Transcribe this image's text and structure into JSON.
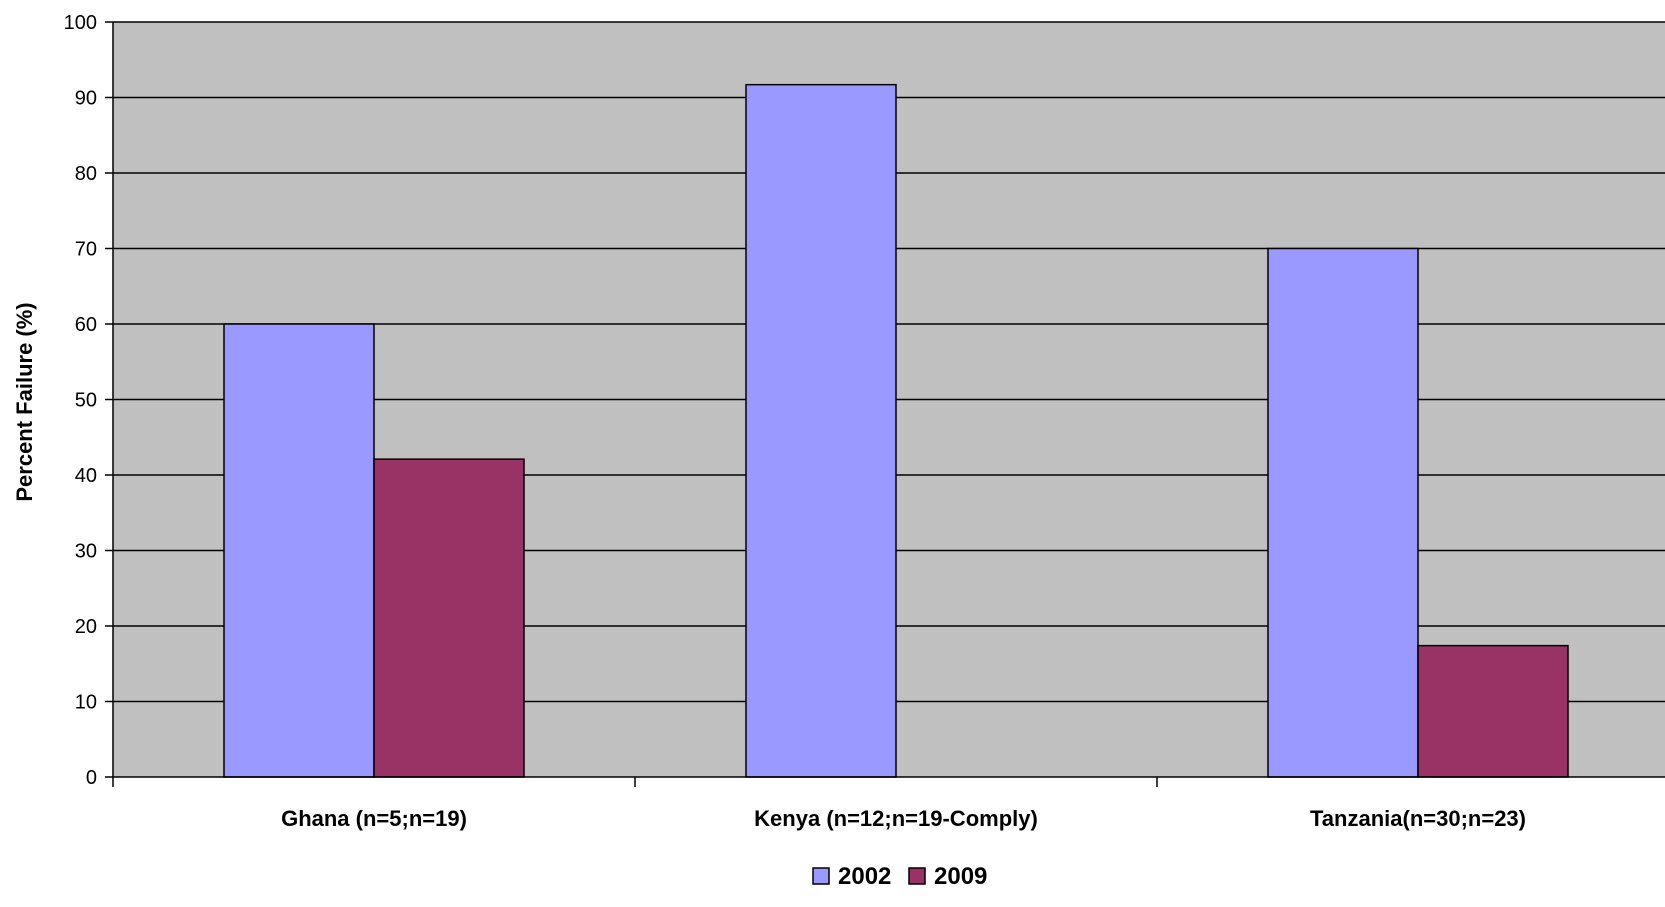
{
  "chart_data": {
    "type": "bar",
    "title": "",
    "xlabel": "",
    "ylabel": "Percent Failure (%)",
    "ylim": [
      0,
      100
    ],
    "yticks": [
      0,
      10,
      20,
      30,
      40,
      50,
      60,
      70,
      80,
      90,
      100
    ],
    "categories": [
      "Ghana (n=5;n=19)",
      "Kenya (n=12;n=19-Comply)",
      "Tanzania(n=30;n=23)"
    ],
    "series": [
      {
        "name": "2002",
        "color": "#9999ff",
        "values": [
          60,
          91.7,
          70
        ]
      },
      {
        "name": "2009",
        "color": "#993366",
        "values": [
          42.1,
          null,
          17.4
        ]
      }
    ],
    "plot_background": "#c0c0c0",
    "grid": true,
    "legend_position": "bottom"
  }
}
